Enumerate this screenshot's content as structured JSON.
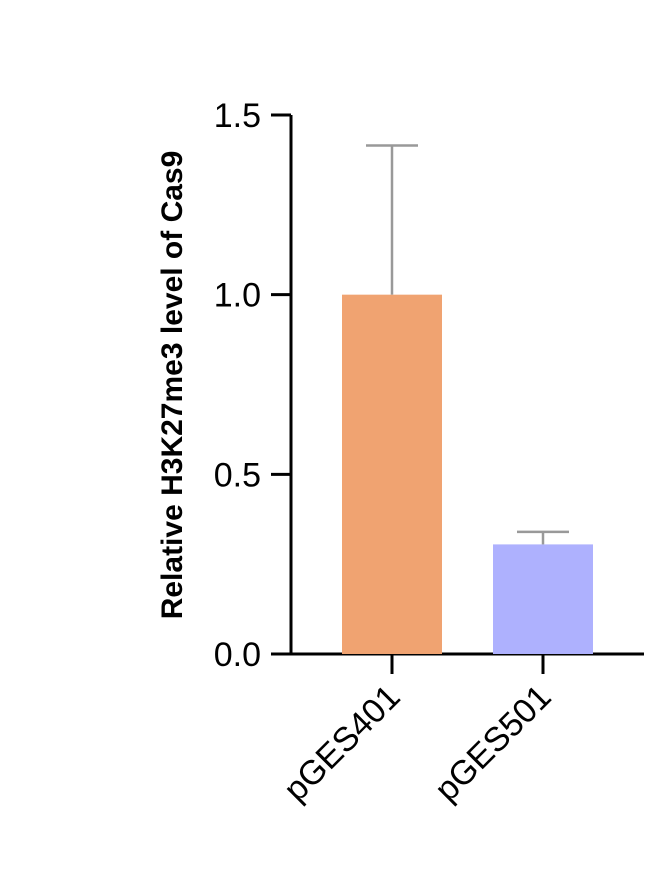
{
  "chart_data": {
    "type": "bar",
    "title": "",
    "xlabel": "",
    "ylabel": "Relative H3K27me3 level of Cas9",
    "categories": [
      "pGES401",
      "pGES501"
    ],
    "values": [
      1.0,
      0.305
    ],
    "error_upper": [
      1.415,
      0.34
    ],
    "ylim": [
      0.0,
      1.5
    ],
    "yticks": [
      "0.0",
      "0.5",
      "1.0",
      "1.5"
    ],
    "colors": [
      "#F0A371",
      "#AEB1FE"
    ],
    "error_color": "#999999",
    "grid": false,
    "legend": "none"
  }
}
